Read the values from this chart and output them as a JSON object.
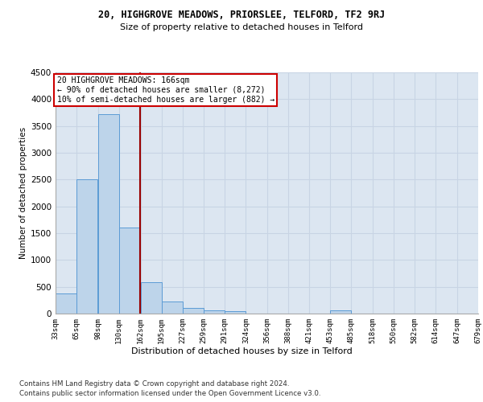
{
  "title": "20, HIGHGROVE MEADOWS, PRIORSLEE, TELFORD, TF2 9RJ",
  "subtitle": "Size of property relative to detached houses in Telford",
  "xlabel": "Distribution of detached houses by size in Telford",
  "ylabel": "Number of detached properties",
  "footer_line1": "Contains HM Land Registry data © Crown copyright and database right 2024.",
  "footer_line2": "Contains public sector information licensed under the Open Government Licence v3.0.",
  "bar_starts": [
    33,
    65,
    98,
    130,
    163,
    195,
    227,
    259,
    291,
    324,
    356,
    388,
    421,
    453,
    485,
    518,
    550,
    582,
    614,
    647
  ],
  "bar_heights": [
    370,
    2500,
    3720,
    1610,
    580,
    230,
    105,
    60,
    38,
    5,
    0,
    0,
    0,
    60,
    0,
    0,
    0,
    0,
    0,
    0
  ],
  "bin_width": 32,
  "tick_labels": [
    "33sqm",
    "65sqm",
    "98sqm",
    "130sqm",
    "162sqm",
    "195sqm",
    "227sqm",
    "259sqm",
    "291sqm",
    "324sqm",
    "356sqm",
    "388sqm",
    "421sqm",
    "453sqm",
    "485sqm",
    "518sqm",
    "550sqm",
    "582sqm",
    "614sqm",
    "647sqm",
    "679sqm"
  ],
  "bar_color": "#bdd4ea",
  "bar_edge_color": "#5b9bd5",
  "grid_color": "#c8d4e4",
  "bg_color": "#dce6f1",
  "property_line_x": 162,
  "property_line_color": "#990000",
  "annotation_text": "20 HIGHGROVE MEADOWS: 166sqm\n← 90% of detached houses are smaller (8,272)\n10% of semi-detached houses are larger (882) →",
  "annotation_box_color": "#ffffff",
  "annotation_box_edge": "#cc0000",
  "ylim": [
    0,
    4500
  ],
  "yticks": [
    0,
    500,
    1000,
    1500,
    2000,
    2500,
    3000,
    3500,
    4000,
    4500
  ]
}
